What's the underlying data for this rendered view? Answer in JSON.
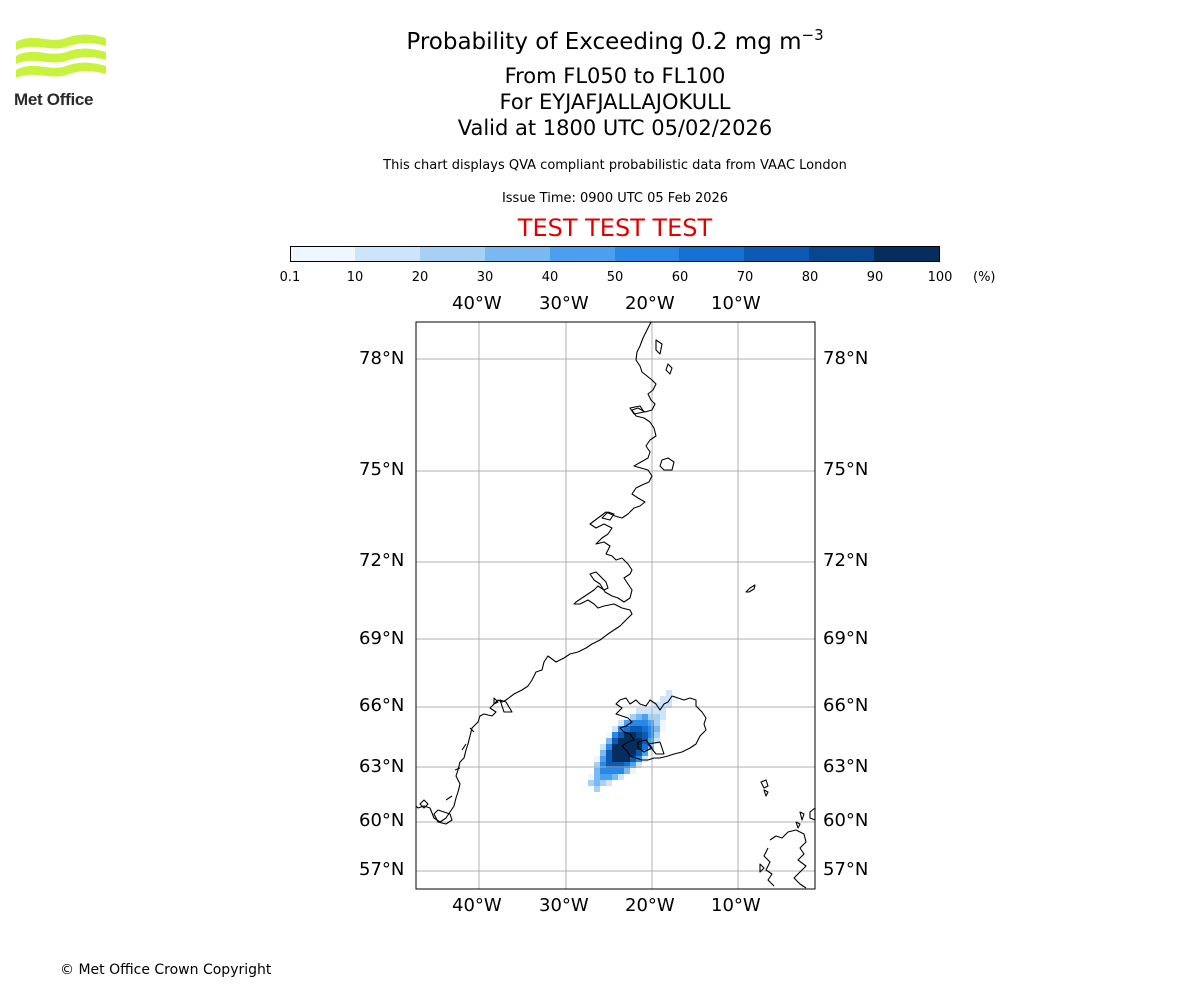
{
  "logo": {
    "text": "Met Office",
    "color": "#c8f23c"
  },
  "title": {
    "main_prefix": "Probability of Exceeding 0.2 mg m",
    "main_exponent": "−3",
    "line2": "From FL050 to FL100",
    "line3": "For EYJAFJALLAJOKULL",
    "line4": "Valid at 1800 UTC 05/02/2026"
  },
  "note": "This chart displays QVA compliant probabilistic data from VAAC London",
  "issue_time": "Issue Time: 0900 UTC 05 Feb 2026",
  "test_banner": {
    "text": "TEST TEST TEST",
    "color": "#e00000"
  },
  "colorbar": {
    "ticks": [
      "0.1",
      "10",
      "20",
      "30",
      "40",
      "50",
      "60",
      "70",
      "80",
      "90",
      "100"
    ],
    "unit": "(%)",
    "colors": [
      "#eef6ff",
      "#cde4fa",
      "#a6d0f6",
      "#7ab8f2",
      "#4aa0ee",
      "#2788e6",
      "#1470d2",
      "#0d5ab4",
      "#084690",
      "#052e5e"
    ]
  },
  "map": {
    "lon_labels": [
      "40°W",
      "30°W",
      "20°W",
      "10°W"
    ],
    "lat_labels": [
      "78°N",
      "75°N",
      "72°N",
      "69°N",
      "66°N",
      "63°N",
      "60°N",
      "57°N"
    ],
    "volcano": "EYJAFJALLAJOKULL"
  },
  "copyright": "© Met Office Crown Copyright"
}
